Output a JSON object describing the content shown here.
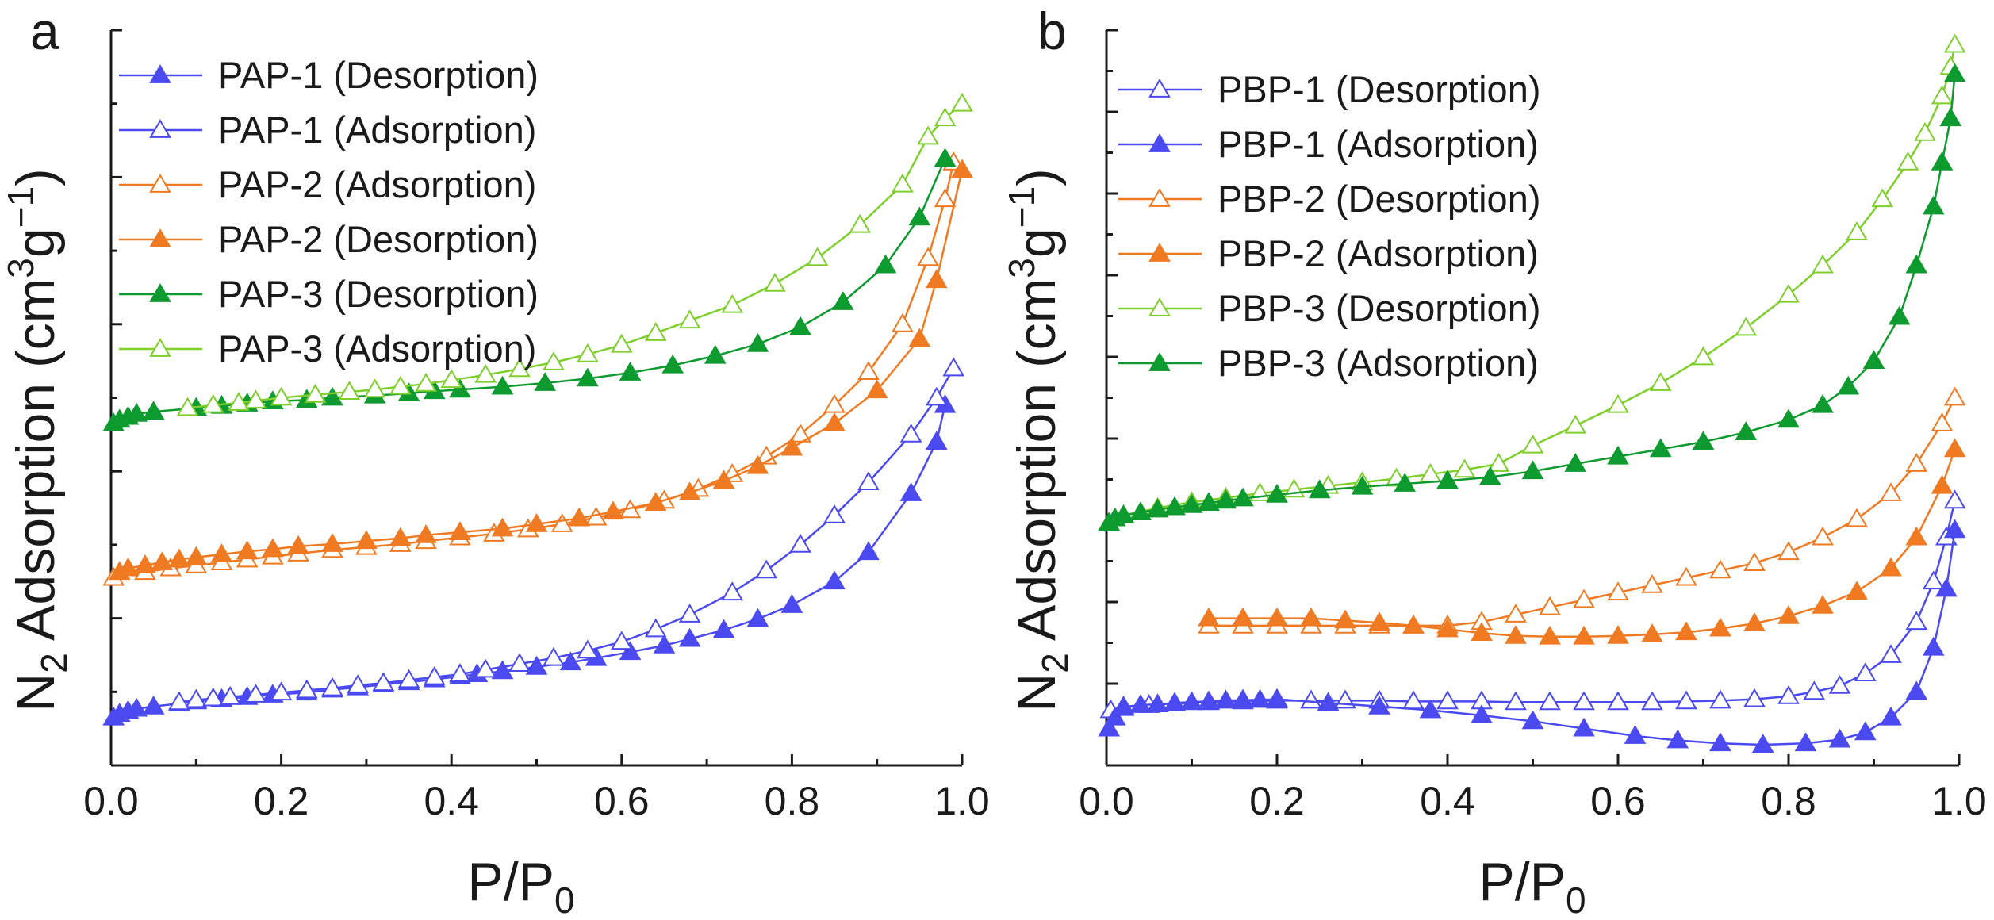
{
  "colors": {
    "blue": "#4a4af0",
    "orange": "#f07a22",
    "green_dark": "#0d9a2e",
    "green_light": "#7fcf2c",
    "axis": "#1a1a1a"
  },
  "chart_data": [
    {
      "panel": "a",
      "type": "line",
      "xlabel_main": "P/P",
      "xlabel_sub": "0",
      "ylabel_main": "N",
      "ylabel_sub": "2",
      "ylabel_rest": " Adsorption (cm",
      "ylabel_sup1": "3",
      "ylabel_g": "g",
      "ylabel_sup2": "−1",
      "ylabel_close": ")",
      "xlim": [
        0.0,
        1.0
      ],
      "ylim": [
        0,
        100
      ],
      "y_tick_labels_shown": false,
      "x_ticks": [
        "0.0",
        "0.2",
        "0.4",
        "0.6",
        "0.8",
        "1.0"
      ],
      "legend_position": "top-left",
      "series": [
        {
          "name": "PAP-1 (Desorption)",
          "color": "#4a4af0",
          "marker": "filled-triangle",
          "x": [
            0.003,
            0.01,
            0.02,
            0.03,
            0.05,
            0.08,
            0.1,
            0.13,
            0.16,
            0.19,
            0.23,
            0.26,
            0.29,
            0.32,
            0.35,
            0.38,
            0.41,
            0.43,
            0.46,
            0.5,
            0.54,
            0.57,
            0.61,
            0.65,
            0.68,
            0.72,
            0.76,
            0.8,
            0.85,
            0.89,
            0.94,
            0.97,
            0.98
          ],
          "y": [
            6.5,
            7.0,
            7.4,
            7.7,
            8.0,
            8.4,
            8.7,
            9.0,
            9.3,
            9.6,
            9.9,
            10.3,
            10.6,
            11.0,
            11.3,
            11.7,
            12.1,
            12.4,
            12.8,
            13.4,
            14.0,
            14.6,
            15.4,
            16.3,
            17.2,
            18.4,
            19.9,
            21.8,
            25.0,
            29.0,
            37.0,
            44.0,
            49.0
          ]
        },
        {
          "name": "PAP-1 (Adsorption)",
          "color": "#4a4af0",
          "marker": "open-triangle",
          "x": [
            0.08,
            0.1,
            0.12,
            0.14,
            0.17,
            0.2,
            0.23,
            0.26,
            0.29,
            0.32,
            0.35,
            0.38,
            0.41,
            0.44,
            0.48,
            0.52,
            0.56,
            0.6,
            0.64,
            0.68,
            0.73,
            0.77,
            0.81,
            0.85,
            0.89,
            0.94,
            0.97,
            0.99
          ],
          "y": [
            8.6,
            8.9,
            9.1,
            9.3,
            9.6,
            9.9,
            10.2,
            10.5,
            10.9,
            11.2,
            11.6,
            12.0,
            12.4,
            13.0,
            13.8,
            14.6,
            15.6,
            16.8,
            18.5,
            20.5,
            23.5,
            26.5,
            30.0,
            34.0,
            38.5,
            45.0,
            50.0,
            54.0
          ]
        },
        {
          "name": "PAP-2 (Adsorption)",
          "color": "#f07a22",
          "marker": "open-triangle",
          "x": [
            0.003,
            0.04,
            0.07,
            0.1,
            0.13,
            0.16,
            0.19,
            0.22,
            0.26,
            0.3,
            0.34,
            0.37,
            0.41,
            0.45,
            0.49,
            0.53,
            0.57,
            0.61,
            0.65,
            0.69,
            0.73,
            0.77,
            0.81,
            0.85,
            0.89,
            0.93,
            0.96,
            0.98,
            0.99
          ],
          "y": [
            25.5,
            26.3,
            26.8,
            27.2,
            27.6,
            28.0,
            28.4,
            28.8,
            29.3,
            29.7,
            30.1,
            30.5,
            31.0,
            31.5,
            32.1,
            32.8,
            33.7,
            34.7,
            36.0,
            37.6,
            39.6,
            42.0,
            45.0,
            49.0,
            53.5,
            60.0,
            69.0,
            77.0,
            82.0
          ]
        },
        {
          "name": "PAP-2 (Desorption)",
          "color": "#f07a22",
          "marker": "filled-triangle",
          "x": [
            0.01,
            0.02,
            0.04,
            0.06,
            0.08,
            0.1,
            0.13,
            0.16,
            0.19,
            0.22,
            0.26,
            0.3,
            0.34,
            0.37,
            0.41,
            0.46,
            0.5,
            0.55,
            0.59,
            0.64,
            0.68,
            0.72,
            0.76,
            0.8,
            0.85,
            0.9,
            0.95,
            0.97,
            1.0
          ],
          "y": [
            26.3,
            26.8,
            27.2,
            27.6,
            28.0,
            28.3,
            28.7,
            29.1,
            29.4,
            29.8,
            30.1,
            30.5,
            30.9,
            31.3,
            31.7,
            32.2,
            32.8,
            33.6,
            34.5,
            35.7,
            37.1,
            38.7,
            40.7,
            43.2,
            46.5,
            51.0,
            58.0,
            66.0,
            81.0
          ]
        },
        {
          "name": "PAP-3 (Desorption)",
          "color": "#0d9a2e",
          "marker": "filled-triangle",
          "x": [
            0.003,
            0.01,
            0.02,
            0.03,
            0.05,
            0.1,
            0.13,
            0.16,
            0.19,
            0.23,
            0.26,
            0.31,
            0.35,
            0.38,
            0.41,
            0.46,
            0.51,
            0.56,
            0.61,
            0.66,
            0.71,
            0.76,
            0.81,
            0.86,
            0.91,
            0.95,
            0.98
          ],
          "y": [
            46.5,
            47.0,
            47.4,
            47.8,
            48.1,
            48.6,
            48.9,
            49.2,
            49.5,
            49.7,
            50.0,
            50.3,
            50.6,
            50.9,
            51.1,
            51.5,
            52.0,
            52.6,
            53.4,
            54.4,
            55.7,
            57.3,
            59.6,
            63.0,
            68.0,
            74.5,
            82.5
          ]
        },
        {
          "name": "PAP-3 (Adsorption)",
          "color": "#7fcf2c",
          "marker": "open-triangle",
          "x": [
            0.09,
            0.12,
            0.15,
            0.17,
            0.2,
            0.24,
            0.28,
            0.31,
            0.34,
            0.37,
            0.4,
            0.44,
            0.48,
            0.52,
            0.56,
            0.6,
            0.64,
            0.68,
            0.73,
            0.78,
            0.83,
            0.88,
            0.93,
            0.96,
            0.98,
            1.0
          ],
          "y": [
            48.6,
            49.0,
            49.3,
            49.6,
            50.0,
            50.4,
            50.8,
            51.1,
            51.5,
            51.9,
            52.4,
            53.1,
            53.9,
            54.8,
            55.9,
            57.2,
            58.8,
            60.5,
            62.6,
            65.5,
            69.0,
            73.5,
            79.0,
            85.5,
            88.0,
            90.0
          ]
        }
      ]
    },
    {
      "panel": "b",
      "type": "line",
      "xlabel_main": "P/P",
      "xlabel_sub": "0",
      "ylabel_main": "N",
      "ylabel_sub": "2",
      "ylabel_rest": " Adsorption (cm",
      "ylabel_sup1": "3",
      "ylabel_g": "g",
      "ylabel_sup2": "−1",
      "ylabel_close": ")",
      "xlim": [
        0.0,
        1.0
      ],
      "ylim": [
        0,
        100
      ],
      "y_tick_labels_shown": false,
      "x_ticks": [
        "0.0",
        "0.2",
        "0.4",
        "0.6",
        "0.8",
        "1.0"
      ],
      "legend_position": "top-left",
      "series": [
        {
          "name": "PBP-1 (Desorption)",
          "color": "#4a4af0",
          "marker": "open-triangle",
          "x": [
            0.005,
            0.02,
            0.05,
            0.08,
            0.12,
            0.16,
            0.2,
            0.24,
            0.28,
            0.32,
            0.36,
            0.4,
            0.44,
            0.48,
            0.52,
            0.56,
            0.6,
            0.64,
            0.68,
            0.72,
            0.76,
            0.8,
            0.83,
            0.86,
            0.89,
            0.92,
            0.95,
            0.97,
            0.985,
            0.995
          ],
          "y": [
            7.5,
            8.0,
            8.2,
            8.4,
            8.6,
            8.7,
            8.8,
            8.8,
            8.8,
            8.8,
            8.7,
            8.7,
            8.7,
            8.6,
            8.6,
            8.6,
            8.6,
            8.6,
            8.7,
            8.8,
            9.0,
            9.4,
            10.0,
            10.8,
            12.5,
            15.0,
            19.5,
            25.0,
            31.0,
            36.0
          ]
        },
        {
          "name": "PBP-1 (Adsorption)",
          "color": "#4a4af0",
          "marker": "filled-triangle",
          "x": [
            0.003,
            0.01,
            0.02,
            0.04,
            0.06,
            0.08,
            0.1,
            0.12,
            0.14,
            0.16,
            0.18,
            0.2,
            0.26,
            0.32,
            0.38,
            0.44,
            0.5,
            0.56,
            0.62,
            0.67,
            0.72,
            0.77,
            0.82,
            0.86,
            0.89,
            0.92,
            0.95,
            0.97,
            0.985,
            0.995
          ],
          "y": [
            5.0,
            6.5,
            7.8,
            8.2,
            8.3,
            8.5,
            8.6,
            8.7,
            8.8,
            8.9,
            8.9,
            9.0,
            8.5,
            8.0,
            7.5,
            6.8,
            6.0,
            5.0,
            4.0,
            3.4,
            3.0,
            2.8,
            3.0,
            3.5,
            4.5,
            6.5,
            10.0,
            16.0,
            24.0,
            32.0
          ]
        },
        {
          "name": "PBP-2 (Desorption)",
          "color": "#f07a22",
          "marker": "open-triangle",
          "x": [
            0.12,
            0.16,
            0.2,
            0.24,
            0.28,
            0.32,
            0.36,
            0.4,
            0.44,
            0.48,
            0.52,
            0.56,
            0.6,
            0.64,
            0.68,
            0.72,
            0.76,
            0.8,
            0.84,
            0.88,
            0.92,
            0.95,
            0.98,
            0.995
          ],
          "y": [
            19.0,
            19.0,
            19.0,
            19.0,
            19.0,
            19.0,
            19.0,
            19.0,
            19.5,
            20.5,
            21.5,
            22.5,
            23.5,
            24.5,
            25.5,
            26.5,
            27.5,
            29.0,
            31.0,
            33.5,
            37.0,
            41.0,
            46.5,
            50.0
          ]
        },
        {
          "name": "PBP-2 (Adsorption)",
          "color": "#f07a22",
          "marker": "filled-triangle",
          "x": [
            0.12,
            0.16,
            0.2,
            0.24,
            0.28,
            0.32,
            0.36,
            0.4,
            0.44,
            0.48,
            0.52,
            0.56,
            0.6,
            0.64,
            0.68,
            0.72,
            0.76,
            0.8,
            0.84,
            0.88,
            0.92,
            0.95,
            0.98,
            0.995
          ],
          "y": [
            20.0,
            20.0,
            20.0,
            20.0,
            19.7,
            19.4,
            19.0,
            18.5,
            18.0,
            17.6,
            17.5,
            17.5,
            17.6,
            17.8,
            18.1,
            18.6,
            19.3,
            20.3,
            21.7,
            23.6,
            26.8,
            31.0,
            38.0,
            43.0
          ]
        },
        {
          "name": "PBP-3 (Desorption)",
          "color": "#7fcf2c",
          "marker": "open-triangle",
          "x": [
            0.02,
            0.06,
            0.1,
            0.14,
            0.18,
            0.22,
            0.26,
            0.3,
            0.34,
            0.38,
            0.42,
            0.46,
            0.5,
            0.55,
            0.6,
            0.65,
            0.7,
            0.75,
            0.8,
            0.84,
            0.88,
            0.91,
            0.94,
            0.96,
            0.98,
            0.99,
            0.995
          ],
          "y": [
            34.0,
            35.0,
            35.8,
            36.4,
            37.0,
            37.5,
            38.0,
            38.5,
            39.0,
            39.6,
            40.2,
            41.0,
            43.5,
            46.2,
            49.0,
            52.0,
            55.5,
            59.5,
            64.0,
            68.0,
            72.5,
            77.0,
            82.0,
            86.0,
            91.0,
            95.0,
            98.0
          ]
        },
        {
          "name": "PBP-3 (Adsorption)",
          "color": "#0d9a2e",
          "marker": "filled-triangle",
          "x": [
            0.003,
            0.01,
            0.02,
            0.04,
            0.06,
            0.08,
            0.1,
            0.12,
            0.14,
            0.16,
            0.2,
            0.25,
            0.3,
            0.35,
            0.4,
            0.45,
            0.5,
            0.55,
            0.6,
            0.65,
            0.7,
            0.75,
            0.8,
            0.84,
            0.87,
            0.9,
            0.93,
            0.95,
            0.97,
            0.98,
            0.99,
            0.995
          ],
          "y": [
            33.0,
            33.6,
            34.0,
            34.4,
            34.8,
            35.1,
            35.4,
            35.7,
            36.0,
            36.3,
            36.8,
            37.4,
            37.9,
            38.3,
            38.7,
            39.2,
            40.0,
            41.0,
            42.0,
            43.0,
            44.0,
            45.3,
            47.0,
            49.0,
            51.5,
            55.0,
            61.0,
            68.0,
            76.0,
            82.0,
            88.0,
            94.0
          ]
        }
      ]
    }
  ]
}
